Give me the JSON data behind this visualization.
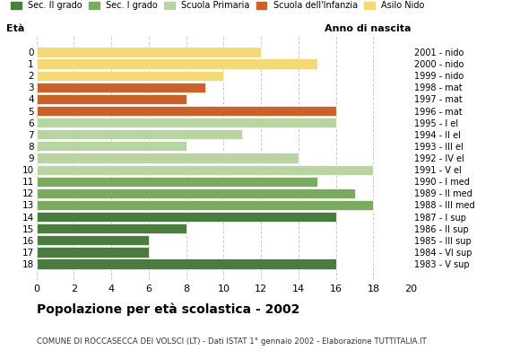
{
  "ages": [
    18,
    17,
    16,
    15,
    14,
    13,
    12,
    11,
    10,
    9,
    8,
    7,
    6,
    5,
    4,
    3,
    2,
    1,
    0
  ],
  "years": [
    "1983 - V sup",
    "1984 - VI sup",
    "1985 - III sup",
    "1986 - II sup",
    "1987 - I sup",
    "1988 - III med",
    "1989 - II med",
    "1990 - I med",
    "1991 - V el",
    "1992 - IV el",
    "1993 - III el",
    "1994 - II el",
    "1995 - I el",
    "1996 - mat",
    "1997 - mat",
    "1998 - mat",
    "1999 - nido",
    "2000 - nido",
    "2001 - nido"
  ],
  "values": [
    16,
    6,
    6,
    8,
    16,
    18,
    17,
    15,
    18,
    14,
    8,
    11,
    16,
    16,
    8,
    9,
    10,
    15,
    12
  ],
  "colors": [
    "#4a7c3f",
    "#4a7c3f",
    "#4a7c3f",
    "#4a7c3f",
    "#4a7c3f",
    "#7aaa5e",
    "#7aaa5e",
    "#7aaa5e",
    "#b8d4a0",
    "#b8d4a0",
    "#b8d4a0",
    "#b8d4a0",
    "#b8d4a0",
    "#c8622a",
    "#c8622a",
    "#c8622a",
    "#f5d978",
    "#f5d978",
    "#f5d978"
  ],
  "legend_labels": [
    "Sec. II grado",
    "Sec. I grado",
    "Scuola Primaria",
    "Scuola dell'Infanzia",
    "Asilo Nido"
  ],
  "legend_colors": [
    "#4a7c3f",
    "#7aaa5e",
    "#b8d4a0",
    "#c8622a",
    "#f5d978"
  ],
  "title": "Popolazione per età scolastica - 2002",
  "subtitle": "COMUNE DI ROCCASECCA DEI VOLSCI (LT) - Dati ISTAT 1° gennaio 2002 - Elaborazione TUTTITALIA.IT",
  "xlabel_left": "Età",
  "xlabel_right": "Anno di nascita",
  "xlim": [
    0,
    20
  ],
  "xticks": [
    0,
    2,
    4,
    6,
    8,
    10,
    12,
    14,
    16,
    18,
    20
  ],
  "background_color": "#ffffff",
  "grid_color": "#cccccc",
  "bar_height": 0.85
}
